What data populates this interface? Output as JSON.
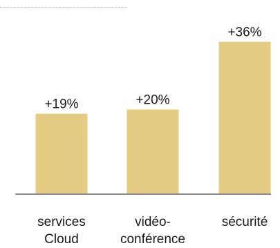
{
  "chart_data": {
    "type": "bar",
    "categories": [
      [
        "services",
        "Cloud"
      ],
      [
        "vidéo-",
        "conférence"
      ],
      [
        "sécurité"
      ]
    ],
    "values": [
      19,
      20,
      36
    ],
    "value_labels": [
      "+19%",
      "+20%",
      "+36%"
    ],
    "ylim": [
      0,
      40
    ],
    "grid": false,
    "legend": "none",
    "colors": {
      "bar": "#e6cc82",
      "axis": "#8c8c8c",
      "text": "#1a1a1a",
      "top_rule": "#bfbfbf"
    }
  }
}
